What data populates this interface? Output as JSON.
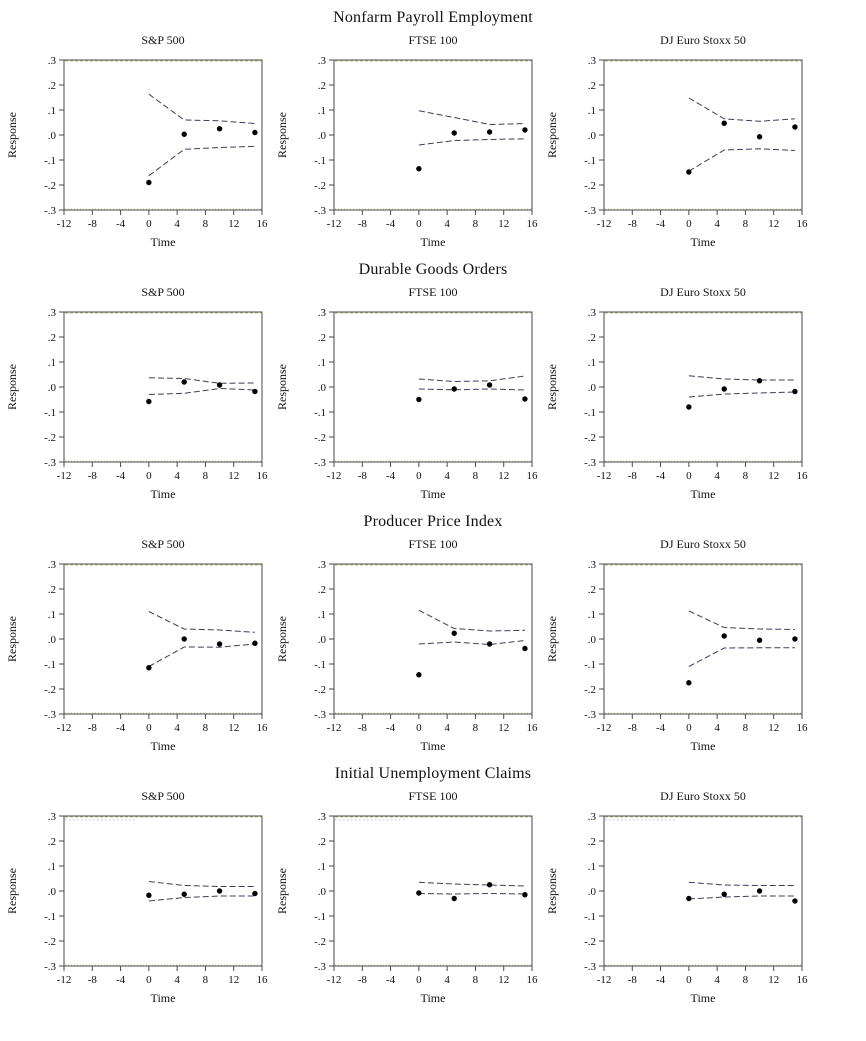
{
  "style": {
    "point_color": "#000000",
    "band_color": "#3c3c5e",
    "frame_color": "#4a4a4a",
    "artifact_top_color": "#b8b877",
    "artifact_bottom_color": "#c4c49a",
    "faint_dotted_color": "#b3bedd",
    "background": "#ffffff"
  },
  "axes": {
    "x": {
      "label": "Time",
      "min": -12,
      "max": 16,
      "ticks": [
        -12,
        -8,
        -4,
        0,
        4,
        8,
        12,
        16
      ],
      "tick_labels": [
        "-12",
        "-8",
        "-4",
        "0",
        "4",
        "8",
        "12",
        "16"
      ]
    },
    "y": {
      "label": "Response",
      "min": -0.3,
      "max": 0.3,
      "ticks": [
        0.3,
        0.2,
        0.1,
        0.0,
        -0.1,
        -0.2,
        -0.3
      ],
      "tick_labels": [
        ".3",
        ".2",
        ".1",
        ".0",
        "-.1",
        "-.2",
        "-.3"
      ]
    }
  },
  "chart_data": [
    {
      "row_title": "Nonfarm Payroll Employment",
      "faint_top_dotted": false,
      "panels": [
        {
          "title": "S&P 500",
          "type": "scatter",
          "x": [
            0,
            5,
            10,
            15
          ],
          "points": [
            -0.19,
            0.003,
            0.025,
            0.01
          ],
          "upper_band": [
            0.163,
            0.06,
            0.057,
            0.046
          ],
          "lower_band": [
            -0.163,
            -0.057,
            -0.05,
            -0.045
          ]
        },
        {
          "title": "FTSE 100",
          "type": "scatter",
          "x": [
            0,
            5,
            10,
            15
          ],
          "points": [
            -0.135,
            0.008,
            0.012,
            0.02
          ],
          "upper_band": [
            0.097,
            0.07,
            0.042,
            0.046
          ],
          "lower_band": [
            -0.04,
            -0.022,
            -0.018,
            -0.015
          ]
        },
        {
          "title": "DJ Euro Stoxx 50",
          "type": "scatter",
          "x": [
            0,
            5,
            10,
            15
          ],
          "points": [
            -0.148,
            0.047,
            -0.007,
            0.032
          ],
          "upper_band": [
            0.148,
            0.065,
            0.055,
            0.065
          ],
          "lower_band": [
            -0.145,
            -0.06,
            -0.055,
            -0.062
          ]
        }
      ]
    },
    {
      "row_title": "Durable Goods Orders",
      "faint_top_dotted": false,
      "panels": [
        {
          "title": "S&P 500",
          "type": "scatter",
          "x": [
            0,
            5,
            10,
            15
          ],
          "points": [
            -0.058,
            0.02,
            0.008,
            -0.018
          ],
          "upper_band": [
            0.037,
            0.034,
            0.015,
            0.016
          ],
          "lower_band": [
            -0.03,
            -0.025,
            -0.006,
            -0.012
          ]
        },
        {
          "title": "FTSE 100",
          "type": "scatter",
          "x": [
            0,
            5,
            10,
            15
          ],
          "points": [
            -0.05,
            -0.008,
            0.008,
            -0.048
          ],
          "upper_band": [
            0.032,
            0.022,
            0.025,
            0.044
          ],
          "lower_band": [
            -0.008,
            -0.011,
            -0.008,
            -0.012
          ]
        },
        {
          "title": "DJ Euro Stoxx 50",
          "type": "scatter",
          "x": [
            0,
            5,
            10,
            15
          ],
          "points": [
            -0.08,
            -0.008,
            0.025,
            -0.018
          ],
          "upper_band": [
            0.045,
            0.032,
            0.028,
            0.028
          ],
          "lower_band": [
            -0.04,
            -0.028,
            -0.024,
            -0.02
          ]
        }
      ]
    },
    {
      "row_title": "Producer Price Index",
      "faint_top_dotted": false,
      "panels": [
        {
          "title": "S&P 500",
          "type": "scatter",
          "x": [
            0,
            5,
            10,
            15
          ],
          "points": [
            -0.115,
            0.0,
            -0.02,
            -0.017
          ],
          "upper_band": [
            0.11,
            0.04,
            0.036,
            0.027
          ],
          "lower_band": [
            -0.11,
            -0.032,
            -0.033,
            -0.02
          ]
        },
        {
          "title": "FTSE 100",
          "type": "scatter",
          "x": [
            0,
            5,
            10,
            15
          ],
          "points": [
            -0.143,
            0.023,
            -0.02,
            -0.038
          ],
          "upper_band": [
            0.115,
            0.042,
            0.032,
            0.035
          ],
          "lower_band": [
            -0.02,
            -0.012,
            -0.022,
            -0.006
          ]
        },
        {
          "title": "DJ Euro Stoxx 50",
          "type": "scatter",
          "x": [
            0,
            5,
            10,
            15
          ],
          "points": [
            -0.175,
            0.012,
            -0.005,
            0.0
          ],
          "upper_band": [
            0.112,
            0.046,
            0.04,
            0.038
          ],
          "lower_band": [
            -0.11,
            -0.036,
            -0.035,
            -0.035
          ]
        }
      ]
    },
    {
      "row_title": "Initial Unemployment Claims",
      "faint_top_dotted": true,
      "panels": [
        {
          "title": "S&P 500",
          "type": "scatter",
          "x": [
            0,
            5,
            10,
            15
          ],
          "points": [
            -0.017,
            -0.013,
            0.0,
            -0.01
          ],
          "upper_band": [
            0.038,
            0.022,
            0.018,
            0.018
          ],
          "lower_band": [
            -0.04,
            -0.026,
            -0.02,
            -0.02
          ]
        },
        {
          "title": "FTSE 100",
          "type": "scatter",
          "x": [
            0,
            5,
            10,
            15
          ],
          "points": [
            -0.008,
            -0.03,
            0.025,
            -0.015
          ],
          "upper_band": [
            0.035,
            0.028,
            0.024,
            0.02
          ],
          "lower_band": [
            -0.01,
            -0.012,
            -0.01,
            -0.012
          ]
        },
        {
          "title": "DJ Euro Stoxx 50",
          "type": "scatter",
          "x": [
            0,
            5,
            10,
            15
          ],
          "points": [
            -0.03,
            -0.013,
            0.0,
            -0.04
          ],
          "upper_band": [
            0.035,
            0.024,
            0.022,
            0.022
          ],
          "lower_band": [
            -0.032,
            -0.024,
            -0.02,
            -0.02
          ]
        }
      ]
    }
  ]
}
